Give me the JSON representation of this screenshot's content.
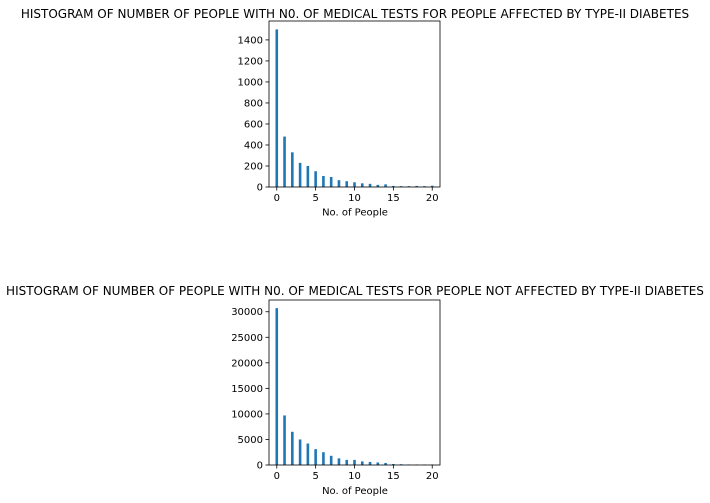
{
  "chart_data": [
    {
      "type": "bar",
      "title": "HISTOGRAM OF NUMBER OF PEOPLE WITH N0. OF MEDICAL TESTS FOR PEOPLE AFFECTED BY TYPE-II DIABETES",
      "xlabel": "No. of People",
      "ylabel": "",
      "x": [
        0,
        1,
        2,
        3,
        4,
        5,
        6,
        7,
        8,
        9,
        10,
        11,
        12,
        13,
        14,
        15,
        16,
        17,
        18,
        19,
        20
      ],
      "values": [
        1500,
        480,
        330,
        230,
        200,
        150,
        105,
        95,
        65,
        55,
        45,
        35,
        30,
        20,
        25,
        10,
        8,
        8,
        10,
        8,
        12
      ],
      "xlim": [
        -1.0,
        21.0
      ],
      "ylim": [
        0,
        1580
      ],
      "xticks": [
        0,
        5,
        10,
        15,
        20
      ],
      "yticks": [
        0,
        200,
        400,
        600,
        800,
        1000,
        1200,
        1400
      ],
      "color": "#1f77b4"
    },
    {
      "type": "bar",
      "title": "HISTOGRAM OF NUMBER OF PEOPLE WITH N0. OF MEDICAL TESTS FOR PEOPLE NOT AFFECTED BY TYPE-II DIABETES",
      "xlabel": "No. of People",
      "ylabel": "",
      "x": [
        0,
        1,
        2,
        3,
        4,
        5,
        6,
        7,
        8,
        9,
        10,
        11,
        12,
        13,
        14,
        15,
        16,
        17,
        18,
        19,
        20
      ],
      "values": [
        30700,
        9700,
        6500,
        5000,
        4200,
        3100,
        2500,
        1800,
        1300,
        1000,
        1000,
        700,
        600,
        500,
        400,
        200,
        150,
        100,
        100,
        100,
        100
      ],
      "xlim": [
        -1.0,
        21.0
      ],
      "ylim": [
        0,
        32300
      ],
      "xticks": [
        0,
        5,
        10,
        15,
        20
      ],
      "yticks": [
        0,
        5000,
        10000,
        15000,
        20000,
        25000,
        30000
      ],
      "color": "#1f77b4"
    }
  ]
}
